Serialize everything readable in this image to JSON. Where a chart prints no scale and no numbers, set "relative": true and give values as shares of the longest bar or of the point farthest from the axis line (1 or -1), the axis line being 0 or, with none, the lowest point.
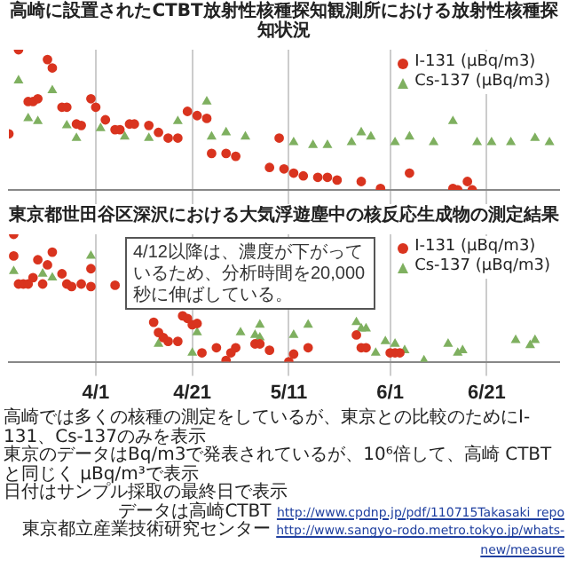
{
  "chart_data": [
    {
      "type": "scatter",
      "title": "高崎に設置されたCTBT放射性核種探知観測所における放射性核種探知状況",
      "relative": true,
      "xlim": [
        "--03-14",
        "--07-06"
      ],
      "xticks": [
        {
          "value": "--04-01",
          "label": "4/1"
        },
        {
          "value": "--04-21",
          "label": "4/21"
        },
        {
          "value": "--05-11",
          "label": "5/11"
        },
        {
          "value": "--06-01",
          "label": "6/1"
        },
        {
          "value": "--06-21",
          "label": "6/21"
        }
      ],
      "tick_labels": false,
      "grid": "x",
      "legend": "top right",
      "series": [
        {
          "name": "I-131 (μBq/m3)",
          "color": "#d9341f",
          "marker": "circle",
          "x": [
            "--03-14",
            "--03-16",
            "--03-18",
            "--03-19",
            "--03-20",
            "--03-22",
            "--03-23",
            "--03-25",
            "--03-26",
            "--03-28",
            "--03-29",
            "--03-31",
            "--04-01",
            "--04-03",
            "--04-05",
            "--04-06",
            "--04-08",
            "--04-09",
            "--04-12",
            "--04-14",
            "--04-16",
            "--04-18",
            "--04-20",
            "--04-22",
            "--04-24",
            "--04-25",
            "--04-28",
            "--04-30",
            "--05-07",
            "--05-09",
            "--05-10",
            "--05-12",
            "--05-14",
            "--05-17",
            "--05-19",
            "--05-21",
            "--05-26",
            "--05-30",
            "--06-05",
            "--06-14",
            "--06-15",
            "--06-17",
            "--06-18"
          ],
          "values": [
            0.4,
            1.0,
            0.63,
            0.63,
            0.65,
            0.93,
            0.87,
            0.59,
            0.59,
            0.47,
            0.46,
            0.65,
            0.59,
            0.5,
            0.43,
            0.43,
            0.47,
            0.47,
            0.46,
            0.41,
            0.37,
            0.37,
            0.56,
            0.53,
            0.51,
            0.26,
            0.26,
            0.24,
            0.16,
            0.37,
            0.15,
            0.12,
            0.1,
            0.09,
            0.09,
            0.07,
            0.06,
            0.01,
            0.12,
            0.01,
            0,
            0.06,
            0
          ]
        },
        {
          "name": "Cs-137 (μBq/m3)",
          "color": "#7fb060",
          "marker": "triangle",
          "x": [
            "--03-16",
            "--03-18",
            "--03-20",
            "--03-23",
            "--03-26",
            "--03-28",
            "--04-02",
            "--04-07",
            "--04-12",
            "--04-18",
            "--04-24",
            "--04-25",
            "--04-28",
            "--05-02",
            "--05-09",
            "--05-12",
            "--05-16",
            "--05-19",
            "--05-24",
            "--05-26",
            "--05-28",
            "--06-02",
            "--06-05",
            "--06-10",
            "--06-14",
            "--06-19",
            "--06-22",
            "--06-26",
            "--07-01",
            "--07-04"
          ],
          "values": [
            0.78,
            0.51,
            0.49,
            0.71,
            0.46,
            0.37,
            0.44,
            0.38,
            0.37,
            0.49,
            0.63,
            0.38,
            0.41,
            0.38,
            null,
            0.34,
            0.32,
            0.32,
            0.34,
            0.41,
            0.38,
            0.34,
            0.38,
            0.34,
            0.49,
            0.34,
            0.34,
            0.34,
            0.37,
            0.34
          ]
        }
      ]
    },
    {
      "type": "scatter",
      "title": "東京都世田谷区深沢における大気浮遊塵中の核反応生成物の測定結果",
      "relative": true,
      "xlim": [
        "--03-14",
        "--07-06"
      ],
      "xticks": [
        {
          "value": "--04-01",
          "label": "4/1"
        },
        {
          "value": "--04-21",
          "label": "4/21"
        },
        {
          "value": "--05-11",
          "label": "5/11"
        },
        {
          "value": "--06-01",
          "label": "6/1"
        },
        {
          "value": "--06-21",
          "label": "6/21"
        }
      ],
      "tick_labels": "x",
      "grid": "x",
      "legend": "top right",
      "annotations": [
        "4/12以降は、濃度が下がっているため、分析時間を20,000秒に伸ばしている。",
        "高崎では多くの核種の測定をしているが、東京との比較のためにI-131、Cs-137のみを表示",
        "東京のデータはBq/m3で発表されているが、10⁶倍して、高崎 CTBTと同じく μBq/m³で表示",
        "日付はサンプル採取の最終日で表示",
        "データは高崎CTBT http://www.cpdnp.jp/pdf/110715Takasaki_repo",
        "東京都立産業技術研究センター http://www.sangyo-rodo.metro.tokyo.jp/whats-new/measure"
      ],
      "series": [
        {
          "name": "I-131 (μBq/m3)",
          "color": "#d9341f",
          "marker": "circle",
          "x": [
            "--03-15",
            "--03-15",
            "--03-16",
            "--03-17",
            "--03-18",
            "--03-19",
            "--03-20",
            "--03-21",
            "--03-22",
            "--03-23",
            "--03-25",
            "--03-26",
            "--03-27",
            "--03-29",
            "--03-31",
            "--03-31",
            "--04-05",
            "--04-13",
            "--04-14",
            "--04-15",
            "--04-16",
            "--04-18",
            "--04-19",
            "--04-20",
            "--04-21",
            "--04-22",
            "--04-23",
            "--04-26",
            "--04-28",
            "--04-29",
            "--04-30",
            "--05-04",
            "--05-05",
            "--05-07",
            "--05-11",
            "--05-12",
            "--05-15",
            "--05-25",
            "--05-26",
            "--05-27",
            "--06-01",
            "--06-02",
            "--06-03"
          ],
          "values": [
            1.0,
            0.83,
            0.61,
            0.61,
            0.61,
            0.66,
            0.8,
            0.61,
            0.76,
            0.86,
            0.69,
            0.61,
            0.59,
            0.61,
            0.73,
            0.59,
            0.6,
            0.31,
            0.23,
            0.19,
            0.16,
            0.16,
            0.36,
            0.34,
            0.29,
            0.3,
            0.07,
            0.11,
            0.01,
            0.07,
            0.11,
            0.14,
            0.14,
            0.09,
            0,
            0.06,
            0.11,
            0.21,
            0.11,
            0.11,
            0.07,
            0.07,
            0.07
          ]
        },
        {
          "name": "Cs-137 (μBq/m3)",
          "color": "#7fb060",
          "marker": "triangle",
          "x": [
            "--03-15",
            "--03-16",
            "--03-21",
            "--03-23",
            "--03-31",
            "--04-14",
            "--04-21",
            "--04-22",
            "--04-26",
            "--05-01",
            "--05-04",
            "--05-05",
            "--05-05",
            "--05-12",
            "--05-15",
            "--05-25",
            "--05-26",
            "--05-27",
            "--05-29",
            "--05-31",
            "--06-02",
            "--06-04",
            "--06-08",
            "--06-13",
            "--06-15",
            "--06-16",
            "--06-27",
            "--06-30",
            "--07-01"
          ],
          "values": [
            0.71,
            null,
            0.69,
            0.66,
            0.83,
            0.14,
            0.07,
            0.23,
            null,
            0.23,
            0.21,
            0.29,
            0.19,
            0.21,
            0.29,
            0.31,
            0.26,
            0.26,
            0.07,
            0.16,
            0.14,
            0.09,
            0.01,
            0.14,
            0.07,
            0.09,
            0.17,
            0.13,
            0.17
          ]
        }
      ]
    }
  ]
}
